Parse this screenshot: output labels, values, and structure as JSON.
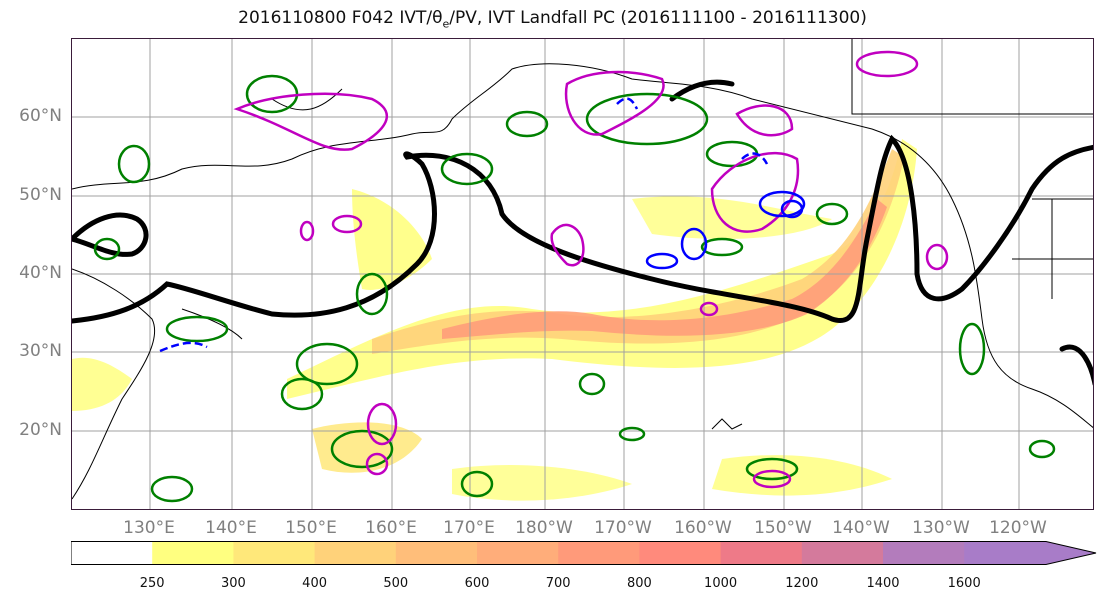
{
  "title_main": "2016110800 F042 IVT/",
  "title_theta": "θ",
  "title_sub": "e",
  "title_tail": "/PV, IVT Landfall PC (2016111100 - 2016111300)",
  "latitude_labels": [
    "60°N",
    "50°N",
    "40°N",
    "30°N",
    "20°N"
  ],
  "latitude_values": [
    60,
    50,
    40,
    30,
    20
  ],
  "longitude_labels": [
    "130°E",
    "140°E",
    "150°E",
    "160°E",
    "170°E",
    "180°W",
    "170°W",
    "160°W",
    "150°W",
    "140°W",
    "130°W",
    "120°W"
  ],
  "longitude_values": [
    130,
    140,
    150,
    160,
    170,
    180,
    190,
    200,
    210,
    220,
    230,
    240
  ],
  "colorbar": {
    "ticks": [
      "250",
      "300",
      "400",
      "500",
      "600",
      "700",
      "800",
      "1000",
      "1200",
      "1400",
      "1600"
    ],
    "colors": [
      "#ffffff",
      "#ffff80",
      "#ffe87a",
      "#ffd27a",
      "#ffbe7a",
      "#ffad7a",
      "#ff9a7a",
      "#ff8a7c",
      "#ee7a88",
      "#d47a9c",
      "#b37cbc",
      "#a87cc8"
    ]
  },
  "contour_colors": {
    "pc_line": "#000000",
    "theta_e": "#008000",
    "pv_positive": "#c000c0",
    "pv_negative": "#0000ff"
  }
}
